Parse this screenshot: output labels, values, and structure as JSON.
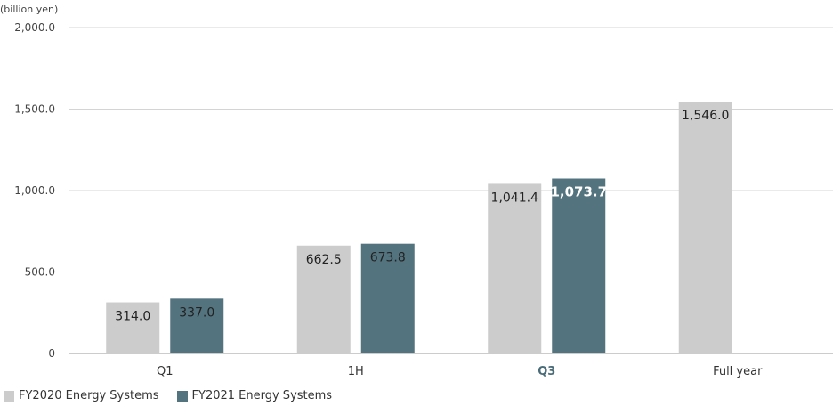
{
  "chart_data": {
    "type": "bar",
    "unit_label": "(billion yen)",
    "categories": [
      "Q1",
      "1H",
      "Q3",
      "Full year"
    ],
    "highlight_category": "Q3",
    "y_ticks": [
      "0",
      "500.0",
      "1,000.0",
      "1,500.0",
      "2,000.0"
    ],
    "ylim": [
      0,
      2000
    ],
    "grid": true,
    "legend_position": "bottom-left",
    "series": [
      {
        "name": "FY2020 Energy Systems",
        "color": "#cccccc",
        "values": [
          314.0,
          662.5,
          1041.4,
          1546.0
        ],
        "labels": [
          "314.0",
          "662.5",
          "1,041.4",
          "1,546.0"
        ]
      },
      {
        "name": "FY2021 Energy Systems",
        "color": "#53737e",
        "values": [
          337.0,
          673.8,
          1073.7,
          null
        ],
        "labels": [
          "337.0",
          "673.8",
          "1,073.7",
          ""
        ]
      }
    ]
  }
}
